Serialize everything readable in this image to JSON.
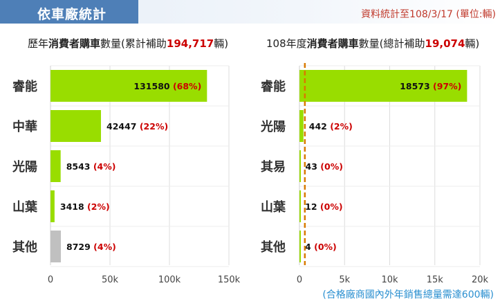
{
  "header": {
    "title": "依車廠統計",
    "note": "資料統計至108/3/17 (單位:輛)"
  },
  "chart_data": [
    {
      "type": "bar",
      "orientation": "horizontal",
      "title": {
        "prefix": "歷年",
        "bold": "消費者購車",
        "mid": "數量(累計補助",
        "total": "194,717",
        "suffix": "輛)"
      },
      "categories": [
        "睿能",
        "中華",
        "光陽",
        "山葉",
        "其他"
      ],
      "values": [
        131580,
        42447,
        8543,
        3418,
        8729
      ],
      "percents": [
        "(68%)",
        "(22%)",
        "(4%)",
        "(2%)",
        "(4%)"
      ],
      "colors": [
        "#99dd00",
        "#99dd00",
        "#99dd00",
        "#99dd00",
        "#c0c0c0"
      ],
      "xlim": [
        0,
        150000
      ],
      "xticks": [
        0,
        50000,
        100000,
        150000
      ],
      "xtick_labels": [
        "0",
        "50k",
        "100k",
        "150k"
      ],
      "grid": true
    },
    {
      "type": "bar",
      "orientation": "horizontal",
      "title": {
        "prefix": "108年度",
        "bold": "消費者購車",
        "mid": "數量(總計補助",
        "total": "19,074",
        "suffix": "輛)"
      },
      "categories": [
        "睿能",
        "光陽",
        "其易",
        "山葉",
        "其他"
      ],
      "values": [
        18573,
        442,
        43,
        12,
        4
      ],
      "percents": [
        "(97%)",
        "(2%)",
        "(0%)",
        "(0%)",
        "(0%)"
      ],
      "colors": [
        "#99dd00",
        "#99dd00",
        "#99dd00",
        "#99dd00",
        "#99dd00"
      ],
      "xlim": [
        0,
        20000
      ],
      "xticks": [
        0,
        5000,
        10000,
        15000,
        20000
      ],
      "xtick_labels": [
        "0",
        "5k",
        "10k",
        "15k",
        "20k"
      ],
      "grid": true,
      "reference_line": {
        "value": 600,
        "color": "#d97a00",
        "style": "dashed"
      },
      "note": "(合格廠商國內外年銷售總量需達600輛)"
    }
  ]
}
